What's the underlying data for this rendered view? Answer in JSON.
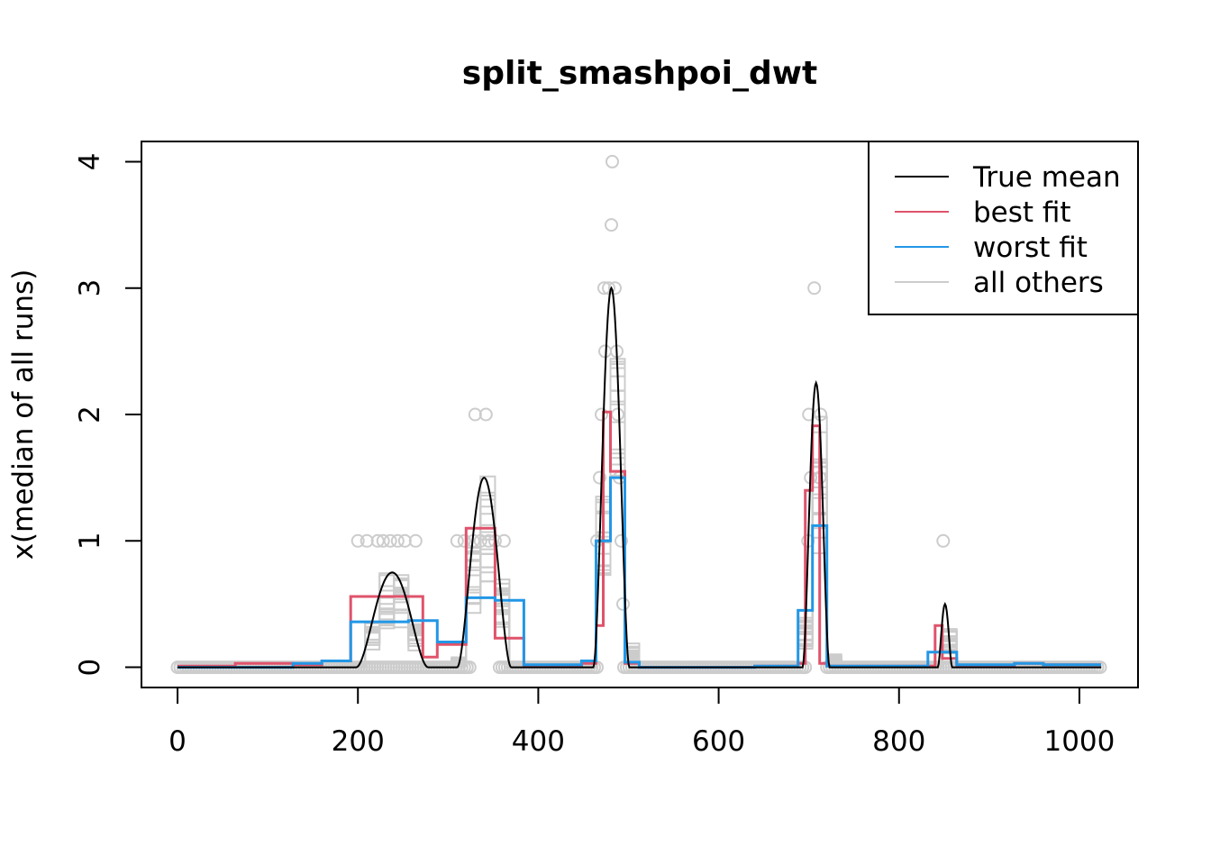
{
  "chart_data": {
    "type": "line",
    "title": "split_smashpoi_dwt",
    "xlabel": "",
    "ylabel": "x(median of all runs)",
    "xlim": [
      -40,
      1065
    ],
    "ylim": [
      -0.16,
      4.16
    ],
    "xticks": [
      0,
      200,
      400,
      600,
      800,
      1000
    ],
    "xtick_labels": [
      "0",
      "200",
      "400",
      "600",
      "800",
      "1000"
    ],
    "yticks": [
      0,
      1,
      2,
      3,
      4
    ],
    "ytick_labels": [
      "0",
      "1",
      "2",
      "3",
      "4"
    ],
    "grid": false,
    "legend_position": "top-right",
    "colors": {
      "true_mean": "#000000",
      "best_fit": "#DF536B",
      "worst_fit": "#2297E6",
      "others": "#CCCCCC",
      "points": "#CCCCCC"
    },
    "true_mean_bumps": [
      {
        "center": 238,
        "height": 0.75,
        "width": 40,
        "shape": "quartic"
      },
      {
        "center": 340,
        "height": 1.5,
        "width": 30,
        "shape": "quartic"
      },
      {
        "center": 481,
        "height": 3.0,
        "width": 20,
        "shape": "quartic"
      },
      {
        "center": 708,
        "height": 2.25,
        "width": 15,
        "shape": "quartic"
      },
      {
        "center": 851,
        "height": 0.5,
        "width": 8,
        "shape": "quartic"
      }
    ],
    "observed_points": [
      {
        "x": 482,
        "y": 4
      },
      {
        "x": 481,
        "y": 3.5
      },
      {
        "x": 706,
        "y": 3
      },
      {
        "x": 473,
        "y": 3
      },
      {
        "x": 478,
        "y": 3
      },
      {
        "x": 485,
        "y": 3
      },
      {
        "x": 474,
        "y": 2.5
      },
      {
        "x": 487,
        "y": 2.5
      },
      {
        "x": 470,
        "y": 2
      },
      {
        "x": 488,
        "y": 2
      },
      {
        "x": 700,
        "y": 2
      },
      {
        "x": 713,
        "y": 2
      },
      {
        "x": 330,
        "y": 2
      },
      {
        "x": 342,
        "y": 2
      },
      {
        "x": 468,
        "y": 1.5
      },
      {
        "x": 490,
        "y": 1.5
      },
      {
        "x": 702,
        "y": 1.5
      },
      {
        "x": 712,
        "y": 1.5
      },
      {
        "x": 200,
        "y": 1
      },
      {
        "x": 210,
        "y": 1
      },
      {
        "x": 222,
        "y": 1
      },
      {
        "x": 228,
        "y": 1
      },
      {
        "x": 236,
        "y": 1
      },
      {
        "x": 244,
        "y": 1
      },
      {
        "x": 252,
        "y": 1
      },
      {
        "x": 264,
        "y": 1
      },
      {
        "x": 310,
        "y": 1
      },
      {
        "x": 318,
        "y": 1
      },
      {
        "x": 328,
        "y": 1
      },
      {
        "x": 336,
        "y": 1
      },
      {
        "x": 345,
        "y": 1
      },
      {
        "x": 352,
        "y": 1
      },
      {
        "x": 362,
        "y": 1
      },
      {
        "x": 465,
        "y": 1
      },
      {
        "x": 492,
        "y": 1
      },
      {
        "x": 699,
        "y": 1
      },
      {
        "x": 849,
        "y": 1
      },
      {
        "x": 494,
        "y": 0.5
      }
    ],
    "series": [
      {
        "name": "best fit",
        "color_key": "best_fit",
        "steps": [
          [
            0,
            0.01
          ],
          [
            64,
            0.03
          ],
          [
            128,
            0.02
          ],
          [
            160,
            0.05
          ],
          [
            192,
            0.56
          ],
          [
            256,
            0.56
          ],
          [
            272,
            0.08
          ],
          [
            288,
            0.18
          ],
          [
            320,
            1.1
          ],
          [
            352,
            0.23
          ],
          [
            384,
            0.01
          ],
          [
            448,
            0.03
          ],
          [
            464,
            0.33
          ],
          [
            472,
            2.02
          ],
          [
            480,
            1.55
          ],
          [
            496,
            0.03
          ],
          [
            512,
            0.0
          ],
          [
            640,
            0.01
          ],
          [
            688,
            0.03
          ],
          [
            696,
            1.4
          ],
          [
            704,
            1.91
          ],
          [
            712,
            0.03
          ],
          [
            720,
            0.01
          ],
          [
            832,
            0.01
          ],
          [
            840,
            0.33
          ],
          [
            848,
            0.07
          ],
          [
            864,
            0.01
          ],
          [
            928,
            0.03
          ],
          [
            960,
            0.02
          ],
          [
            1024,
            0.02
          ]
        ]
      },
      {
        "name": "worst fit",
        "color_key": "worst_fit",
        "steps": [
          [
            0,
            0.0
          ],
          [
            128,
            0.03
          ],
          [
            160,
            0.05
          ],
          [
            192,
            0.36
          ],
          [
            256,
            0.37
          ],
          [
            288,
            0.2
          ],
          [
            320,
            0.55
          ],
          [
            352,
            0.53
          ],
          [
            384,
            0.02
          ],
          [
            448,
            0.05
          ],
          [
            464,
            1.0
          ],
          [
            480,
            1.5
          ],
          [
            496,
            0.04
          ],
          [
            512,
            0.0
          ],
          [
            640,
            0.01
          ],
          [
            688,
            0.45
          ],
          [
            704,
            1.12
          ],
          [
            720,
            0.01
          ],
          [
            832,
            0.12
          ],
          [
            864,
            0.02
          ],
          [
            928,
            0.03
          ],
          [
            960,
            0.02
          ],
          [
            1024,
            0.02
          ]
        ]
      }
    ],
    "legend": [
      {
        "label": "True mean",
        "color_key": "true_mean"
      },
      {
        "label": "best fit",
        "color_key": "best_fit"
      },
      {
        "label": "worst fit",
        "color_key": "worst_fit"
      },
      {
        "label": "all others",
        "color_key": "others"
      }
    ]
  }
}
